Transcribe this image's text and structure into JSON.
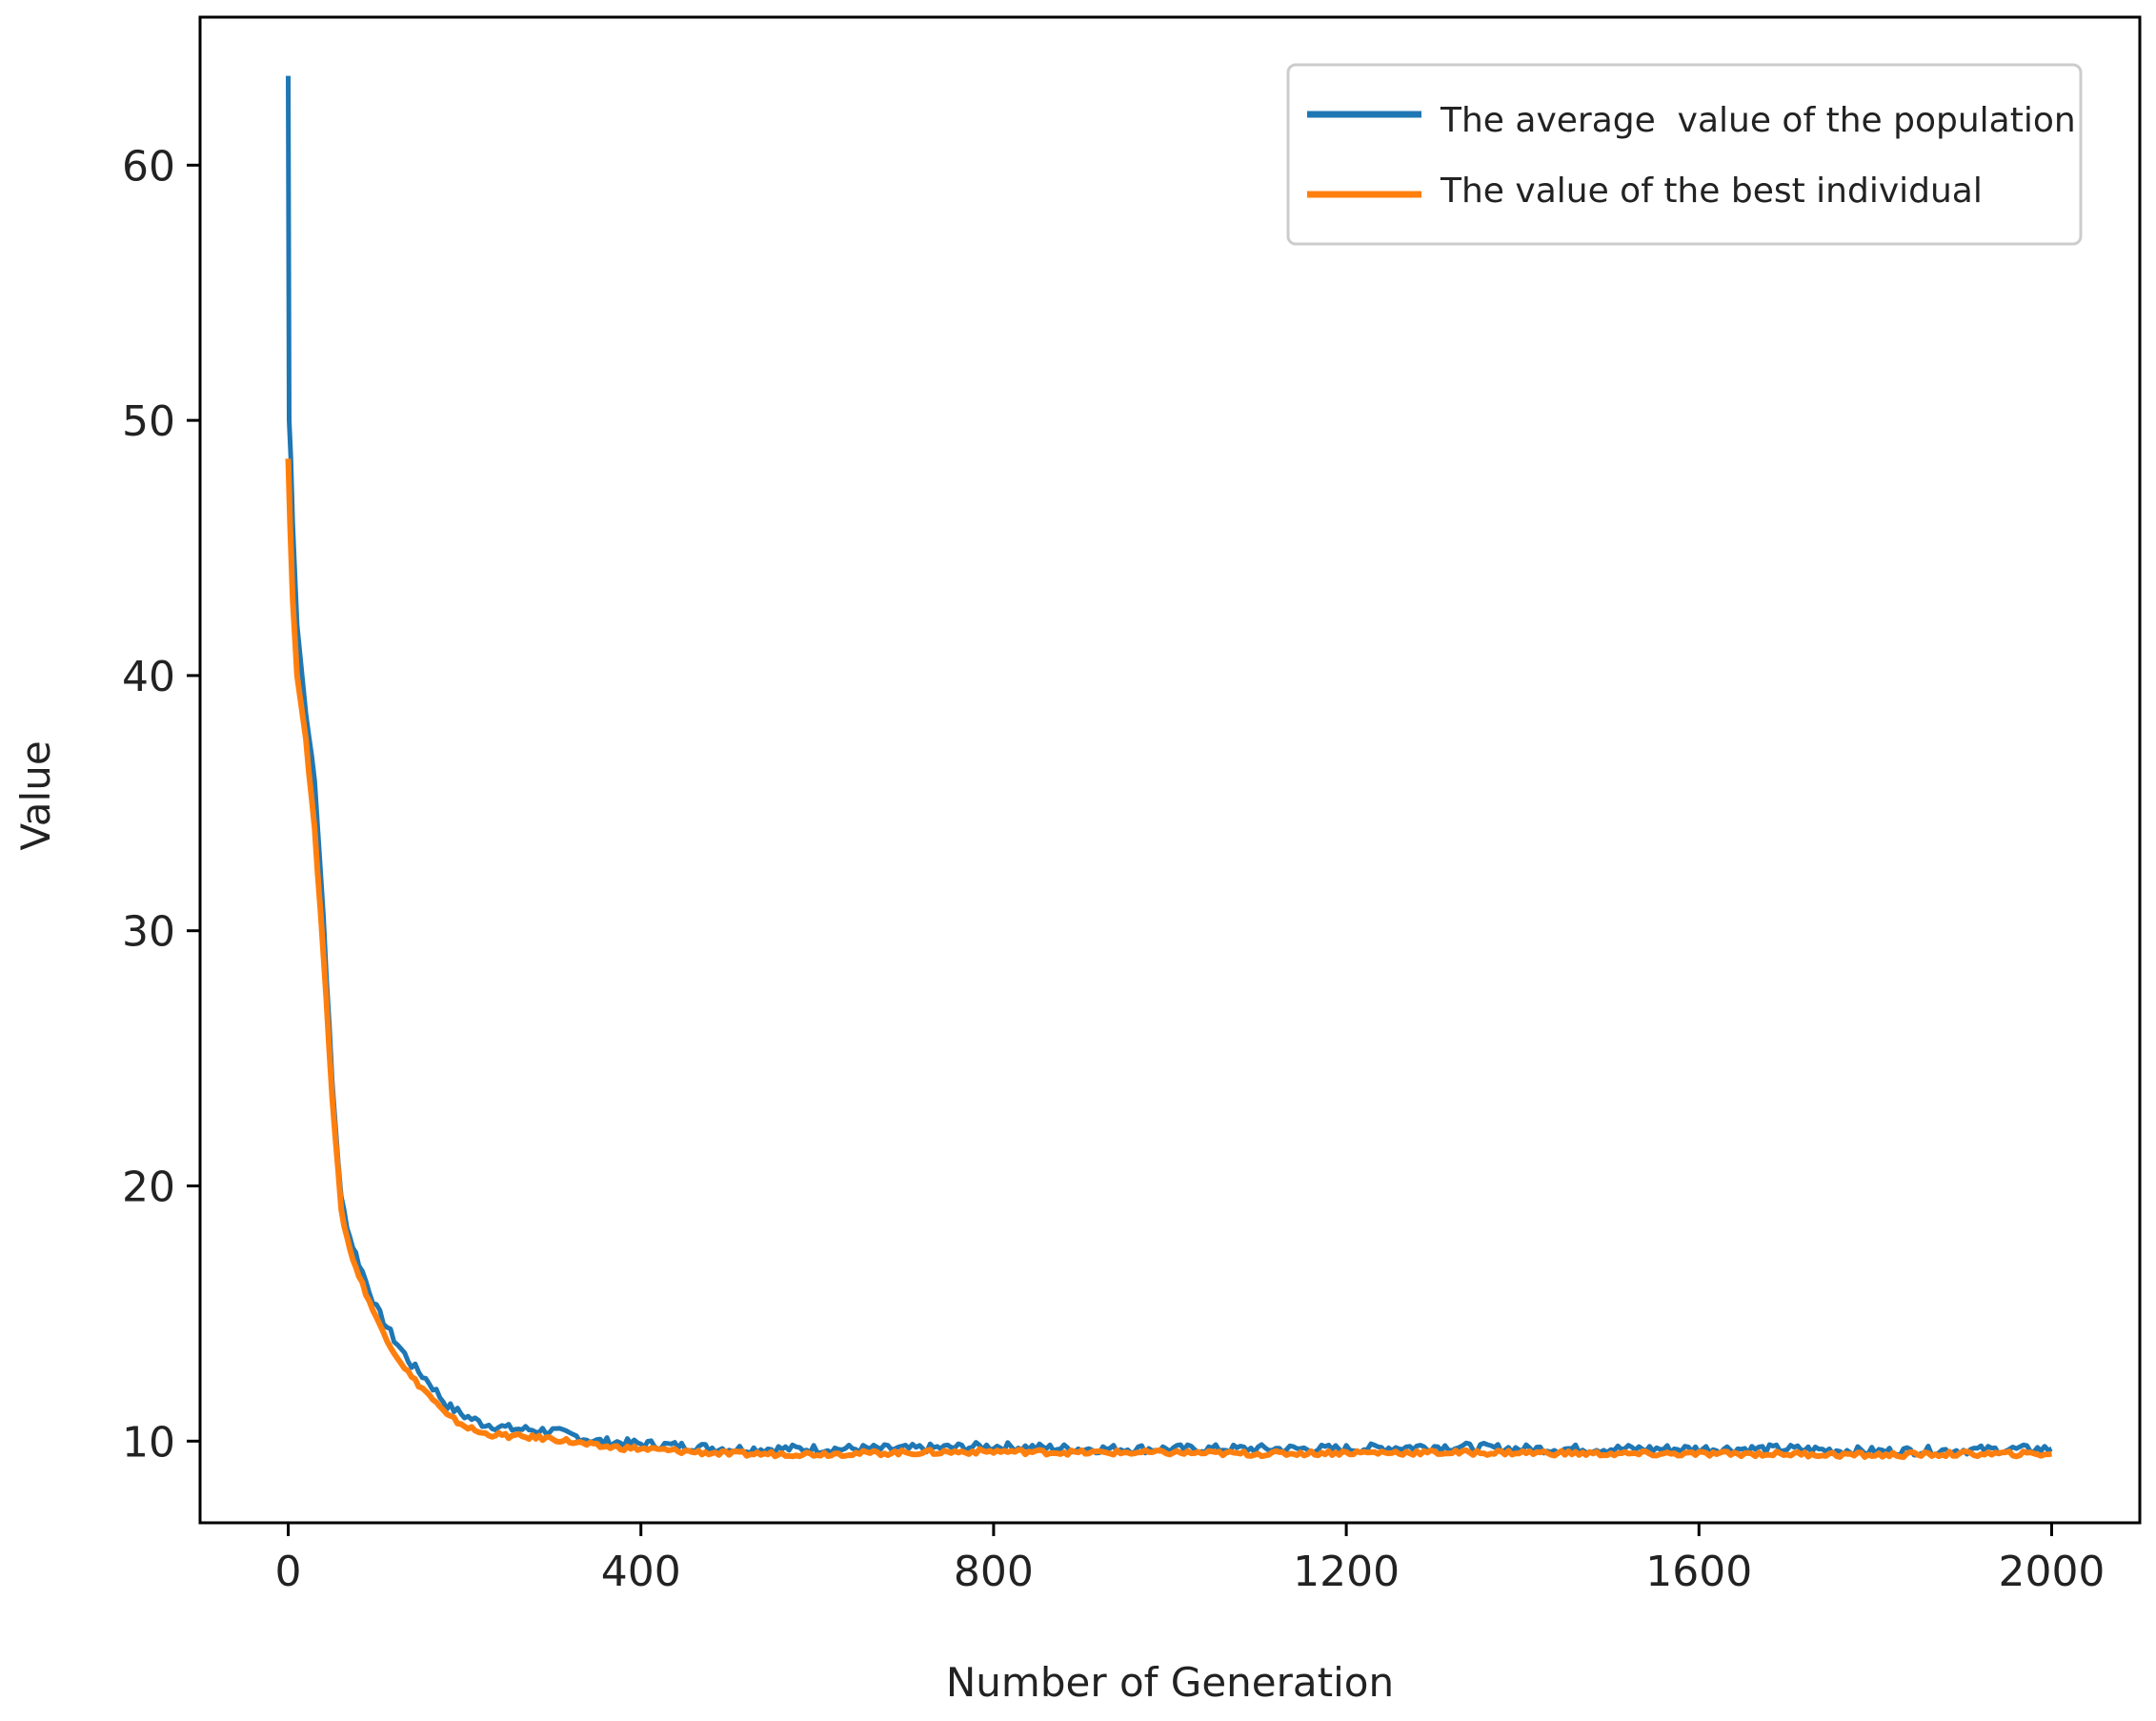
{
  "chart_data": {
    "type": "line",
    "title": "",
    "xlabel": "Number of Generation",
    "ylabel": "Value",
    "xlim": [
      -100,
      2100
    ],
    "ylim": [
      6.8,
      65.8
    ],
    "xticks": [
      0,
      400,
      800,
      1200,
      1600,
      2000
    ],
    "yticks": [
      10,
      20,
      30,
      40,
      50,
      60
    ],
    "grid": false,
    "legend_position": "top-right",
    "series": [
      {
        "name": "The average  value of the population",
        "color": "#1f77b4",
        "x": [
          0,
          1,
          3,
          5,
          10,
          20,
          30,
          40,
          50,
          60,
          70,
          80,
          100,
          120,
          140,
          160,
          180,
          200,
          220,
          250,
          300,
          350,
          400,
          450,
          500,
          600,
          700,
          800,
          900,
          1000,
          1100,
          1200,
          1300,
          1400,
          1500,
          1600,
          1700,
          1800,
          1900,
          2000
        ],
        "values": [
          63.5,
          50,
          48.5,
          46,
          42,
          38.5,
          36,
          30.5,
          24,
          19.5,
          18,
          17,
          15.2,
          14,
          13,
          12.3,
          11.4,
          11,
          10.7,
          10.5,
          10.4,
          10,
          9.9,
          9.8,
          9.7,
          9.7,
          9.7,
          9.8,
          9.7,
          9.7,
          9.7,
          9.7,
          9.8,
          9.7,
          9.7,
          9.7,
          9.7,
          9.6,
          9.65,
          9.7
        ]
      },
      {
        "name": "The value of the best individual",
        "color": "#ff7f0e",
        "x": [
          0,
          2,
          5,
          10,
          20,
          30,
          40,
          50,
          60,
          70,
          80,
          100,
          120,
          140,
          160,
          180,
          200,
          220,
          250,
          300,
          350,
          400,
          450,
          500,
          600,
          700,
          800,
          900,
          1000,
          1100,
          1200,
          1300,
          1400,
          1500,
          1600,
          1700,
          1800,
          1900,
          2000
        ],
        "values": [
          48.5,
          46,
          43,
          40,
          37.5,
          34,
          29,
          23.5,
          19,
          17.5,
          16.5,
          14.8,
          13.5,
          12.5,
          11.8,
          11,
          10.6,
          10.3,
          10.2,
          10.1,
          9.8,
          9.7,
          9.6,
          9.5,
          9.5,
          9.55,
          9.6,
          9.55,
          9.55,
          9.5,
          9.55,
          9.55,
          9.55,
          9.5,
          9.5,
          9.5,
          9.45,
          9.5,
          9.5
        ]
      }
    ]
  }
}
